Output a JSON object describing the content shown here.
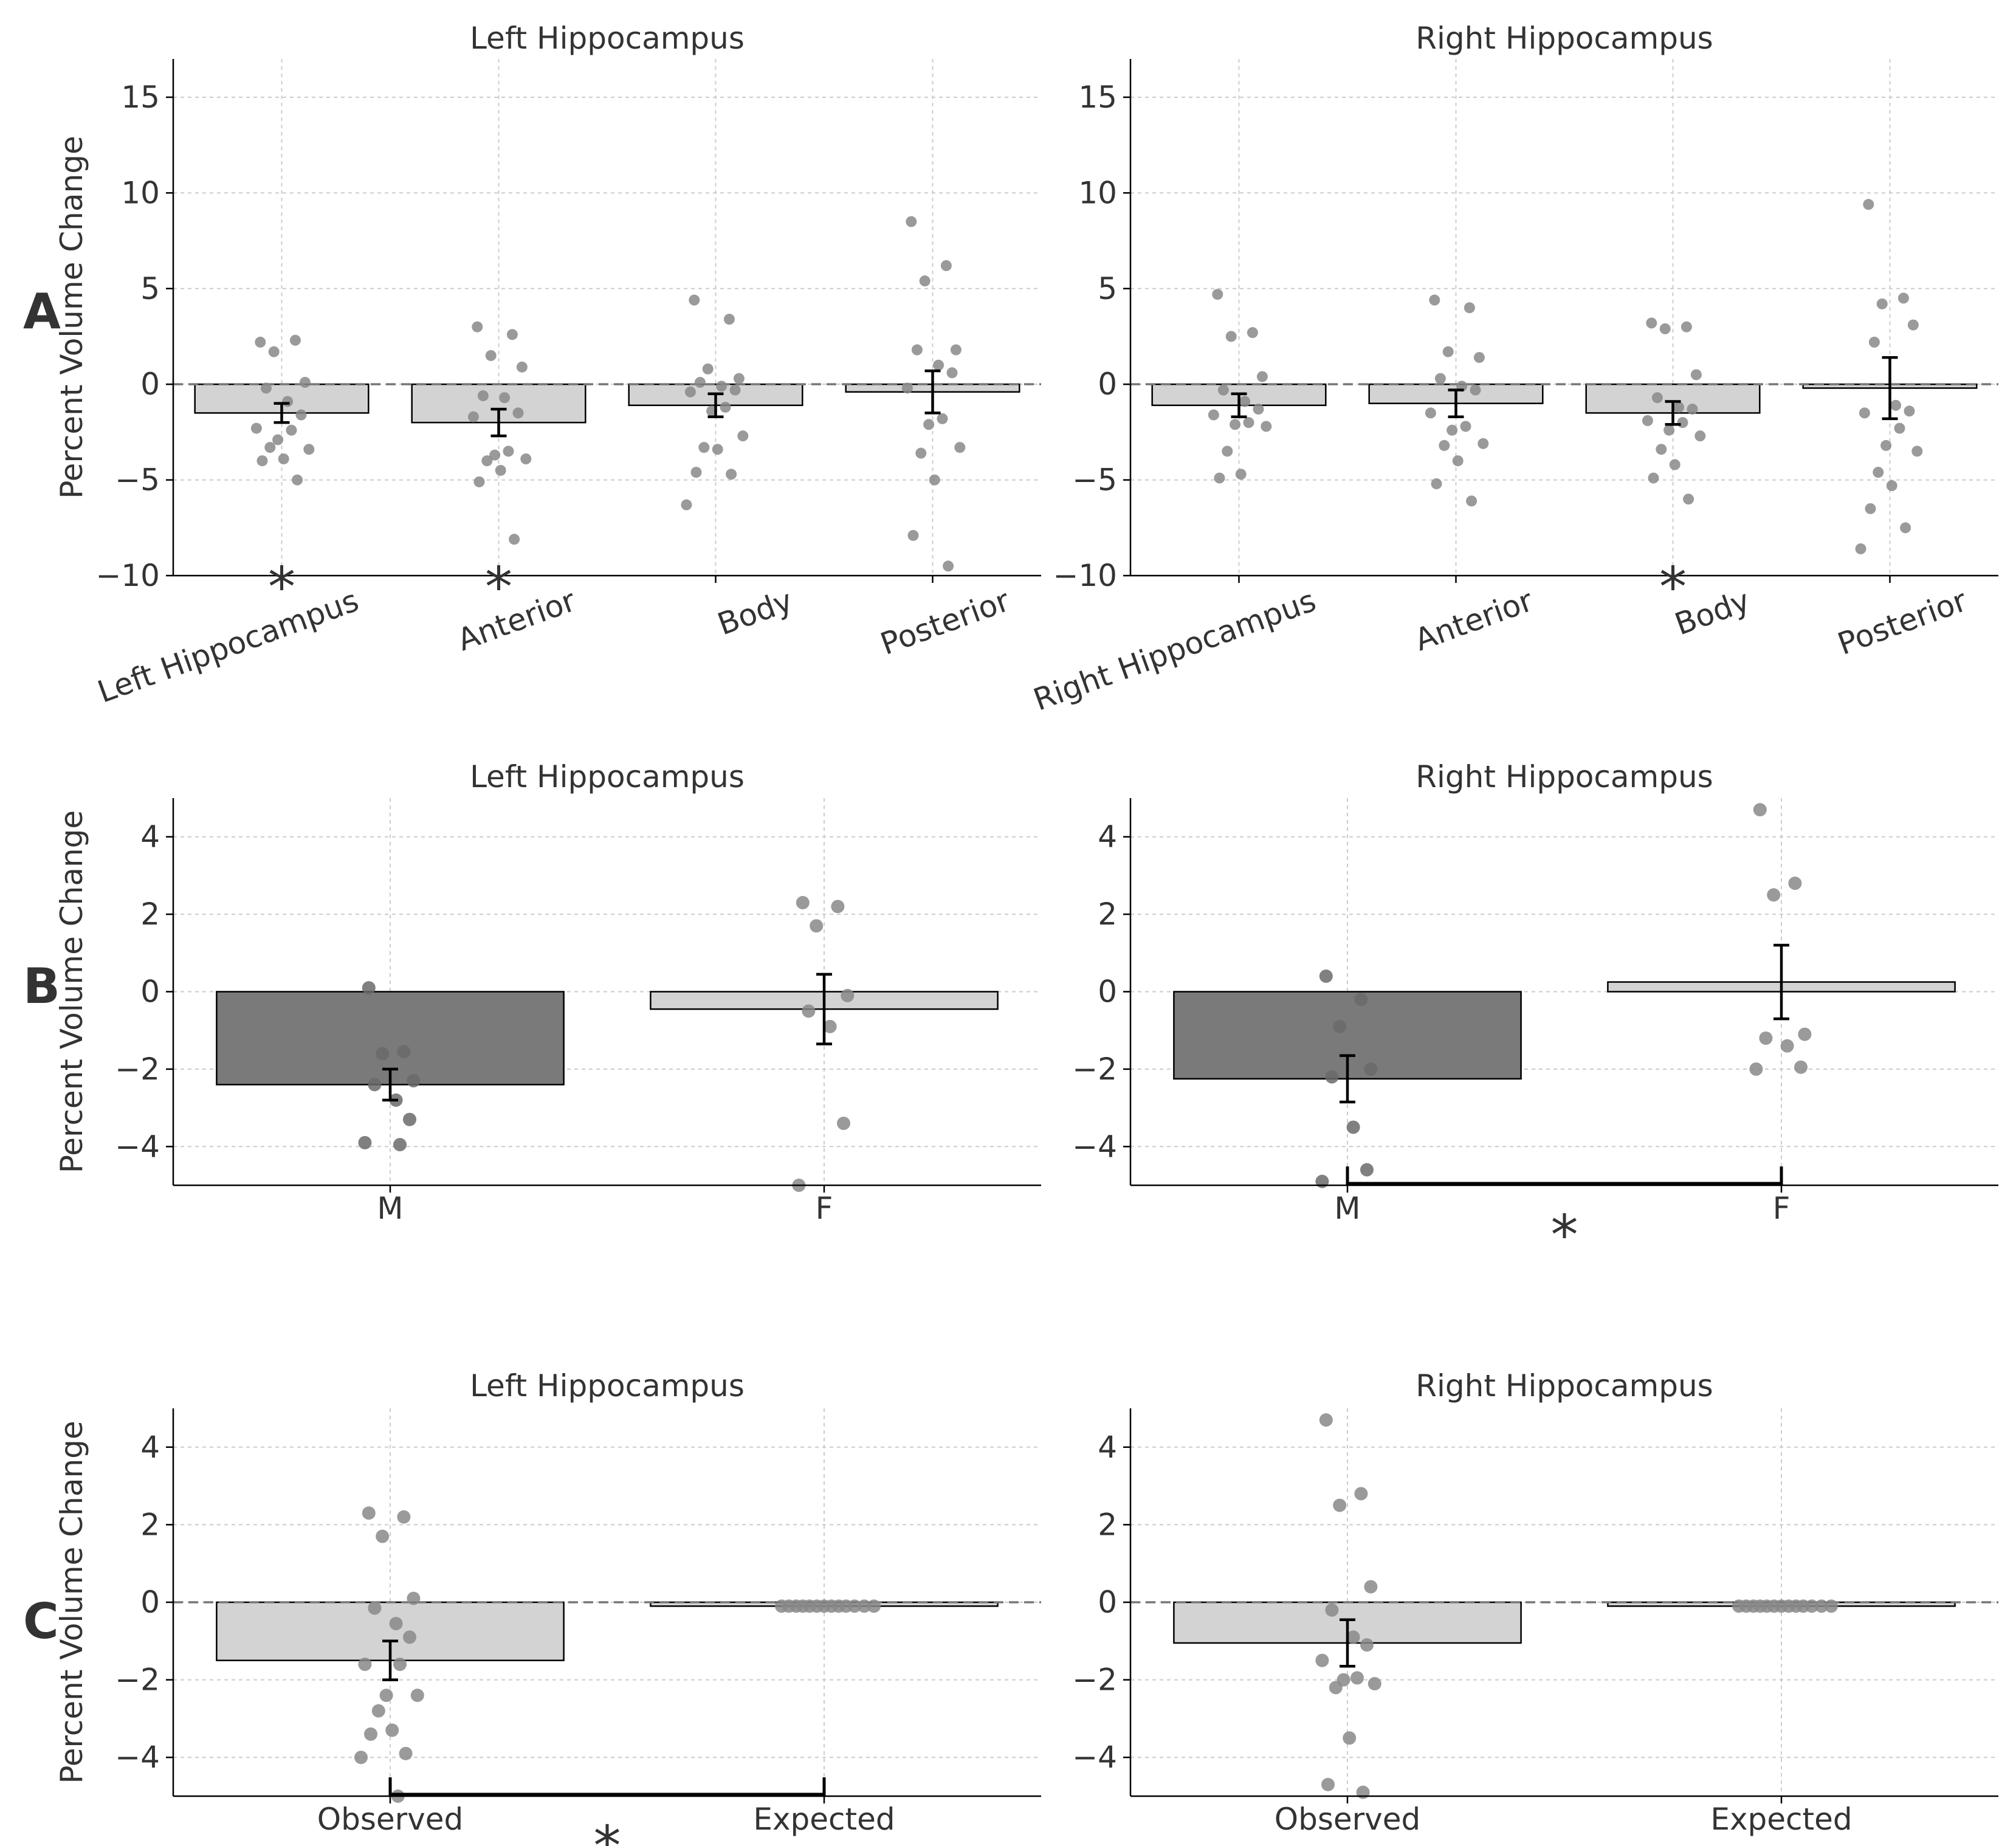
{
  "figure": {
    "row_labels": [
      "A",
      "B",
      "C"
    ],
    "colors": {
      "bar_light": "#d3d3d3",
      "bar_dark": "#7a7a7a",
      "point": "#888888",
      "point_dark": "#6a6a6a",
      "significance": "#ff0000",
      "zero_line": "#777777",
      "grid": "#cccccc"
    }
  },
  "chart_data": [
    {
      "id": "A-left",
      "row": "A",
      "type": "bar",
      "title": "Left Hippocampus",
      "xlabel": "",
      "ylabel": "Percent Volume Change",
      "ylim": [
        -10,
        17
      ],
      "yticks": [
        -10,
        -5,
        0,
        5,
        10,
        15
      ],
      "grid": true,
      "zero_line": true,
      "rotate_ticks": true,
      "categories": [
        "Left Hippocampus",
        "Anterior",
        "Body",
        "Posterior"
      ],
      "values": [
        -1.5,
        -2.0,
        -1.1,
        -0.4
      ],
      "bar_styles": [
        "light",
        "light",
        "light",
        "light"
      ],
      "errors": [
        0.5,
        0.7,
        0.6,
        1.1
      ],
      "points": [
        [
          2.2,
          2.3,
          1.7,
          0.1,
          -0.2,
          -0.9,
          -1.6,
          -2.3,
          -2.4,
          -2.9,
          -3.4,
          -3.3,
          -3.9,
          -4.0,
          -5.0
        ],
        [
          3.0,
          2.6,
          1.5,
          0.9,
          -0.6,
          -0.7,
          -1.5,
          -1.7,
          -3.5,
          -3.7,
          -3.9,
          -4.0,
          -4.5,
          -5.1,
          -8.1
        ],
        [
          4.4,
          3.4,
          0.8,
          0.3,
          0.1,
          -0.1,
          -0.3,
          -0.4,
          -1.2,
          -1.4,
          -2.7,
          -3.3,
          -3.4,
          -4.6,
          -4.7,
          -6.3
        ],
        [
          8.5,
          6.2,
          5.4,
          1.8,
          1.8,
          1.0,
          0.6,
          -0.2,
          -1.8,
          -2.1,
          -3.3,
          -3.6,
          -5.0,
          -7.9,
          -9.5
        ]
      ],
      "significance": [
        0,
        1
      ]
    },
    {
      "id": "A-right",
      "row": "A",
      "type": "bar",
      "title": "Right Hippocampus",
      "xlabel": "",
      "ylabel": "",
      "ylim": [
        -10,
        17
      ],
      "yticks": [
        -10,
        -5,
        0,
        5,
        10,
        15
      ],
      "grid": true,
      "zero_line": true,
      "rotate_ticks": true,
      "categories": [
        "Right Hippocampus",
        "Anterior",
        "Body",
        "Posterior"
      ],
      "values": [
        -1.1,
        -1.0,
        -1.5,
        -0.2
      ],
      "bar_styles": [
        "light",
        "light",
        "light",
        "light"
      ],
      "errors": [
        0.6,
        0.7,
        0.6,
        1.6
      ],
      "points": [
        [
          4.7,
          2.7,
          2.5,
          0.4,
          -0.3,
          -0.9,
          -1.3,
          -1.6,
          -2.0,
          -2.1,
          -2.2,
          -3.5,
          -4.7,
          -4.9
        ],
        [
          4.4,
          4.0,
          1.7,
          1.4,
          0.3,
          -0.1,
          -0.3,
          -1.5,
          -2.2,
          -2.4,
          -3.1,
          -3.2,
          -4.0,
          -5.2,
          -6.1
        ],
        [
          3.2,
          3.0,
          2.9,
          0.5,
          -0.7,
          -1.2,
          -1.3,
          -1.9,
          -2.0,
          -2.4,
          -2.7,
          -3.4,
          -4.2,
          -4.9,
          -6.0
        ],
        [
          9.4,
          4.5,
          4.2,
          3.1,
          2.2,
          -1.1,
          -1.4,
          -1.5,
          -2.3,
          -3.2,
          -3.5,
          -4.6,
          -5.3,
          -6.5,
          -7.5,
          -8.6
        ]
      ],
      "significance": [
        2
      ]
    },
    {
      "id": "B-left",
      "row": "B",
      "type": "bar",
      "title": "Left Hippocampus",
      "xlabel": "",
      "ylabel": "Percent Volume Change",
      "ylim": [
        -5,
        5
      ],
      "yticks": [
        -4,
        -2,
        0,
        2,
        4
      ],
      "grid": true,
      "zero_line": false,
      "rotate_ticks": false,
      "categories": [
        "M",
        "F"
      ],
      "values": [
        -2.4,
        -0.45
      ],
      "bar_styles": [
        "dark",
        "light"
      ],
      "errors": [
        0.4,
        0.9
      ],
      "points": [
        [
          0.1,
          -1.55,
          -1.6,
          -2.3,
          -2.4,
          -2.8,
          -3.3,
          -3.9,
          -3.95
        ],
        [
          2.3,
          2.2,
          1.7,
          -0.1,
          -0.5,
          -0.9,
          -3.4,
          -5.0
        ]
      ],
      "significance": []
    },
    {
      "id": "B-right",
      "row": "B",
      "type": "bar",
      "title": "Right Hippocampus",
      "xlabel": "",
      "ylabel": "",
      "ylim": [
        -5,
        5
      ],
      "yticks": [
        -4,
        -2,
        0,
        2,
        4
      ],
      "grid": true,
      "zero_line": false,
      "rotate_ticks": false,
      "categories": [
        "M",
        "F"
      ],
      "values": [
        -2.25,
        0.25
      ],
      "bar_styles": [
        "dark",
        "light"
      ],
      "errors": [
        0.6,
        0.95
      ],
      "points": [
        [
          0.4,
          -0.2,
          -0.9,
          -2.0,
          -2.2,
          -3.5,
          -4.6,
          -4.9
        ],
        [
          4.7,
          2.8,
          2.5,
          -1.1,
          -1.2,
          -1.4,
          -1.95,
          -2.0
        ]
      ],
      "significance_bracket": [
        0,
        1
      ]
    },
    {
      "id": "C-left",
      "row": "C",
      "type": "bar",
      "title": "Left Hippocampus",
      "xlabel": "",
      "ylabel": "Percent Volume Change",
      "ylim": [
        -5,
        5
      ],
      "yticks": [
        -4,
        -2,
        0,
        2,
        4
      ],
      "grid": true,
      "zero_line": true,
      "rotate_ticks": false,
      "categories": [
        "Observed",
        "Expected"
      ],
      "values": [
        -1.5,
        -0.1
      ],
      "bar_styles": [
        "light",
        "light"
      ],
      "errors": [
        0.5,
        0.0
      ],
      "points": [
        [
          2.3,
          2.2,
          1.7,
          0.1,
          -0.15,
          -0.55,
          -0.9,
          -1.6,
          -1.6,
          -2.4,
          -2.4,
          -2.8,
          -3.3,
          -3.4,
          -3.9,
          -4.0,
          -5.0
        ],
        [
          -0.1,
          -0.1,
          -0.1,
          -0.1,
          -0.1,
          -0.1,
          -0.1,
          -0.1,
          -0.1,
          -0.1,
          -0.1,
          -0.1,
          -0.1
        ]
      ],
      "significance_bracket": [
        0,
        1
      ]
    },
    {
      "id": "C-right",
      "row": "C",
      "type": "bar",
      "title": "Right Hippocampus",
      "xlabel": "",
      "ylabel": "",
      "ylim": [
        -5,
        5
      ],
      "yticks": [
        -4,
        -2,
        0,
        2,
        4
      ],
      "grid": true,
      "zero_line": true,
      "rotate_ticks": false,
      "categories": [
        "Observed",
        "Expected"
      ],
      "values": [
        -1.05,
        -0.1
      ],
      "bar_styles": [
        "light",
        "light"
      ],
      "errors": [
        0.6,
        0.0
      ],
      "points": [
        [
          4.7,
          2.8,
          2.5,
          0.4,
          -0.2,
          -0.9,
          -1.1,
          -1.5,
          -1.95,
          -2.0,
          -2.1,
          -2.2,
          -3.5,
          -4.7,
          -4.9
        ],
        [
          -0.1,
          -0.1,
          -0.1,
          -0.1,
          -0.1,
          -0.1,
          -0.1,
          -0.1,
          -0.1,
          -0.1,
          -0.1,
          -0.1,
          -0.1
        ]
      ],
      "significance": []
    }
  ]
}
